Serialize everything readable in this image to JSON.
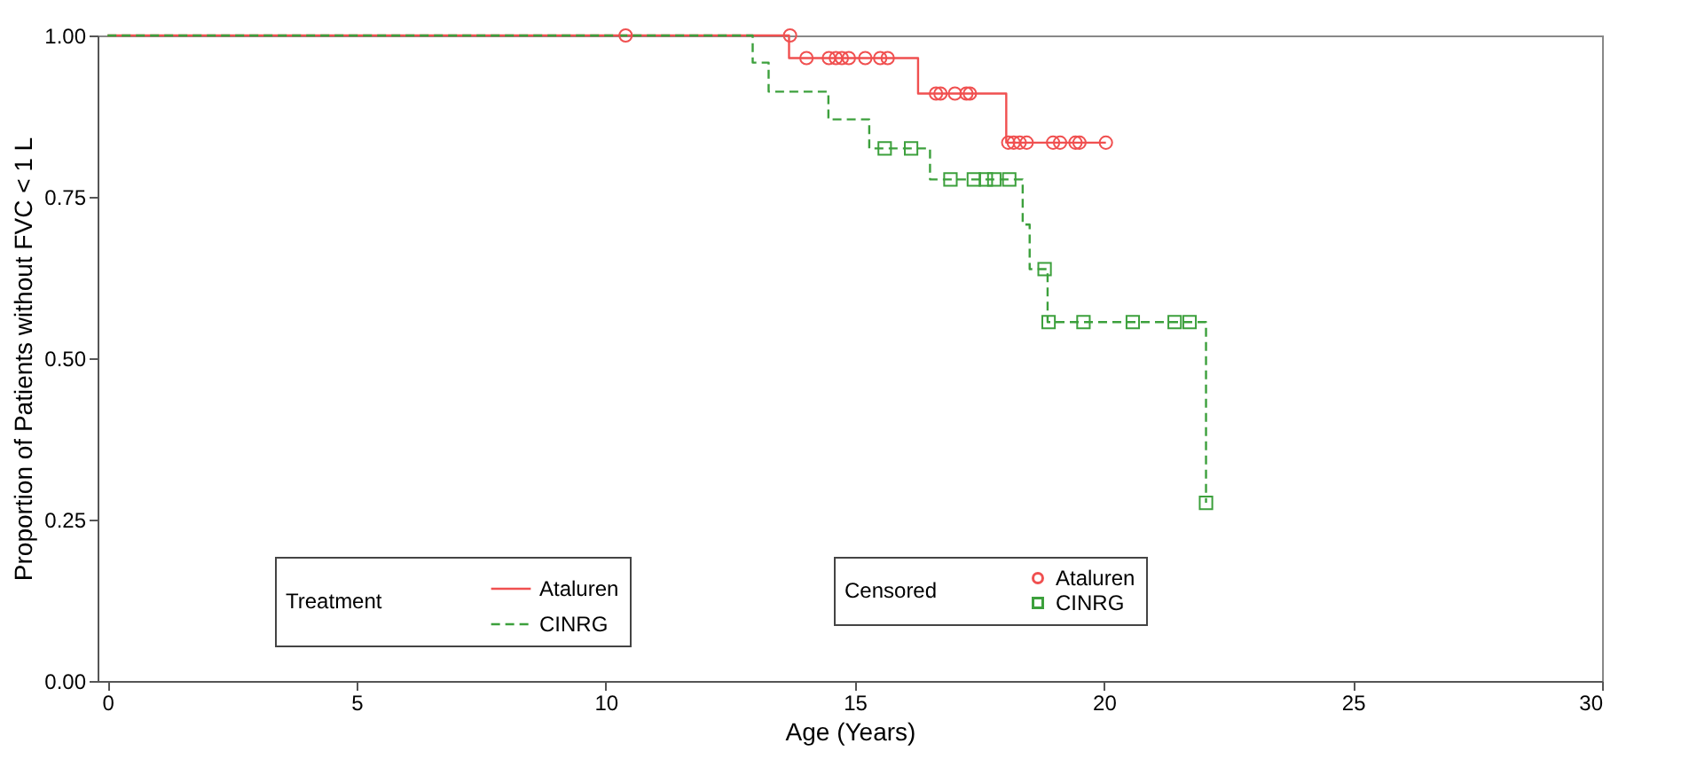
{
  "chart_data": {
    "type": "step",
    "xlabel": "Age (Years)",
    "ylabel": "Proportion of Patients without FVC < 1 L",
    "legend_title": "Treatment",
    "annotations": [
      "Censored"
    ],
    "xlim": [
      -0.2,
      30
    ],
    "xticks": [
      0,
      5,
      10,
      15,
      20,
      25,
      30
    ],
    "ylim": [
      0,
      1
    ],
    "yticks": [
      {
        "value": 0,
        "label": "0.00"
      },
      {
        "value": 0.25,
        "label": "0.25"
      },
      {
        "value": 0.5,
        "label": "0.50"
      },
      {
        "value": 0.75,
        "label": "0.75"
      },
      {
        "value": 1,
        "label": "1.00"
      }
    ],
    "grid": false,
    "legend": "bottom left",
    "series": [
      {
        "name": "Ataluren",
        "type": "step",
        "color": "#f05050",
        "line_style": "solid",
        "marker": "none",
        "x": [
          0,
          13.68,
          16.27,
          18.04,
          20.04
        ],
        "values": [
          1,
          0.965,
          0.91,
          0.834,
          0.834
        ]
      },
      {
        "name": "CINRG",
        "type": "step",
        "color": "#3ca03c",
        "line_style": "dashed",
        "marker": "none",
        "x": [
          0,
          12.95,
          13.27,
          14.47,
          15.29,
          16.51,
          18.37,
          18.51,
          18.87,
          22.05
        ],
        "values": [
          1,
          0.958,
          0.913,
          0.87,
          0.825,
          0.777,
          0.707,
          0.638,
          0.556,
          0.276
        ]
      },
      {
        "name": "Ataluren",
        "type": "scatter",
        "color": "#f05050",
        "marker": "circle",
        "x": [
          10.4,
          13.7,
          14.03,
          14.48,
          14.62,
          14.74,
          14.88,
          15.21,
          15.51,
          15.66,
          16.63,
          16.72,
          17.01,
          17.24,
          17.31,
          18.08,
          18.19,
          18.31,
          18.45,
          18.98,
          19.12,
          19.43,
          19.51,
          20.04
        ],
        "values": [
          1,
          1,
          0.965,
          0.965,
          0.965,
          0.965,
          0.965,
          0.965,
          0.965,
          0.965,
          0.91,
          0.91,
          0.91,
          0.91,
          0.91,
          0.834,
          0.834,
          0.834,
          0.834,
          0.834,
          0.834,
          0.834,
          0.834,
          0.834
        ]
      },
      {
        "name": "CINRG",
        "type": "scatter",
        "color": "#3ca03c",
        "marker": "square",
        "x": [
          15.6,
          16.13,
          16.92,
          17.39,
          17.63,
          17.8,
          18.1,
          18.81,
          18.89,
          19.59,
          20.58,
          21.42,
          21.72,
          22.05
        ],
        "values": [
          0.825,
          0.825,
          0.777,
          0.777,
          0.777,
          0.777,
          0.777,
          0.638,
          0.556,
          0.556,
          0.556,
          0.556,
          0.556,
          0.276
        ]
      }
    ]
  }
}
